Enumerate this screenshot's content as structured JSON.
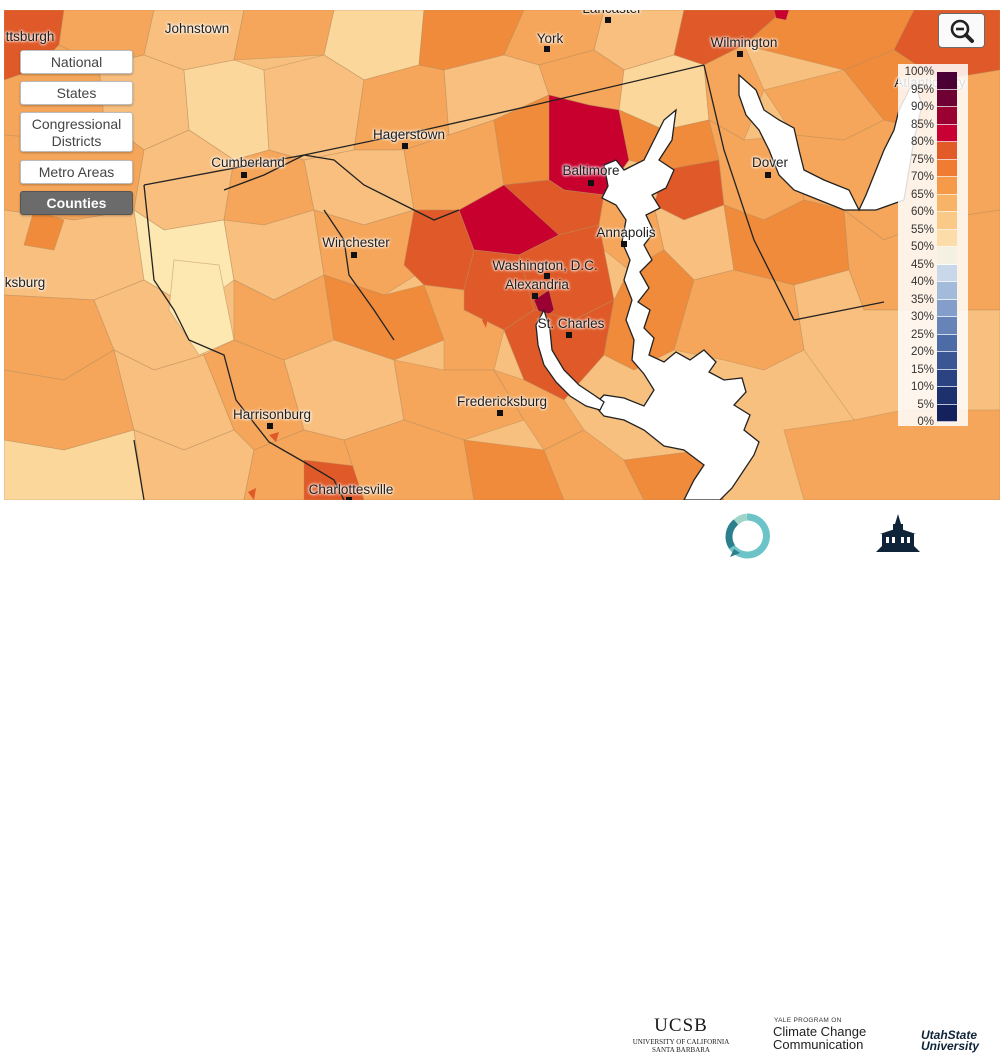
{
  "map": {
    "cities": [
      {
        "name": "Johnstown",
        "dot": false
      },
      {
        "name": "Lancaster",
        "dot": true
      },
      {
        "name": "York",
        "dot": true
      },
      {
        "name": "Wilmington",
        "dot": true
      },
      {
        "name": "Hagerstown",
        "dot": true
      },
      {
        "name": "Cumberland",
        "dot": true
      },
      {
        "name": "Baltimore",
        "dot": true
      },
      {
        "name": "Dover",
        "dot": true
      },
      {
        "name": "Winchester",
        "dot": true
      },
      {
        "name": "Annapolis",
        "dot": true
      },
      {
        "name": "Washington, D.C.",
        "dot": true
      },
      {
        "name": "Alexandria",
        "dot": true
      },
      {
        "name": "St. Charles",
        "dot": true
      },
      {
        "name": "Fredericksburg",
        "dot": true
      },
      {
        "name": "Harrisonburg",
        "dot": true
      },
      {
        "name": "Charlottesville",
        "dot": true
      },
      {
        "name": "ttsburgh",
        "dot": false
      },
      {
        "name": "ksburg",
        "dot": false
      },
      {
        "name": "Atlantic City",
        "dot": false
      }
    ]
  },
  "geo_buttons": [
    {
      "label": "National",
      "active": false
    },
    {
      "label": "States",
      "active": false
    },
    {
      "label": "Congressional Districts",
      "active": false
    },
    {
      "label": "Metro Areas",
      "active": false
    },
    {
      "label": "Counties",
      "active": true
    }
  ],
  "zoom_button": {
    "icon": "zoom-out-icon"
  },
  "legend": {
    "labels": [
      "100%",
      "95%",
      "90%",
      "85%",
      "80%",
      "75%",
      "70%",
      "65%",
      "60%",
      "55%",
      "50%",
      "45%",
      "40%",
      "35%",
      "30%",
      "25%",
      "20%",
      "15%",
      "10%",
      "5%",
      "0%"
    ],
    "colors": [
      "#4a0035",
      "#6e0033",
      "#9a0031",
      "#c80033",
      "#e15a28",
      "#ef7c32",
      "#f49a48",
      "#f7b366",
      "#fac887",
      "#fcdca9",
      "#f4f0e2",
      "#c8d7ea",
      "#a3bbdb",
      "#839ecb",
      "#6784b9",
      "#4d6ba7",
      "#3b5695",
      "#2b4382",
      "#1d316f",
      "#13225c"
    ]
  },
  "footer": {
    "ucsb": {
      "title": "UCSB",
      "subtitle_line1": "UNIVERSITY OF CALIFORNIA",
      "subtitle_line2": "SANTA BARBARA"
    },
    "yale": {
      "top": "YALE PROGRAM ON",
      "line1": "Climate Change",
      "line2": "Communication"
    },
    "usu": {
      "line1": "UtahState",
      "line2": "University"
    }
  },
  "colors": {
    "very_high": "#c8002e",
    "high": "#df5a28",
    "mid_high": "#ef8b3a",
    "mid": "#f5a65a",
    "low_mid": "#f8bf7e",
    "low": "#fbd79c",
    "lowest": "#fce8b0",
    "water": "#ffffff"
  }
}
